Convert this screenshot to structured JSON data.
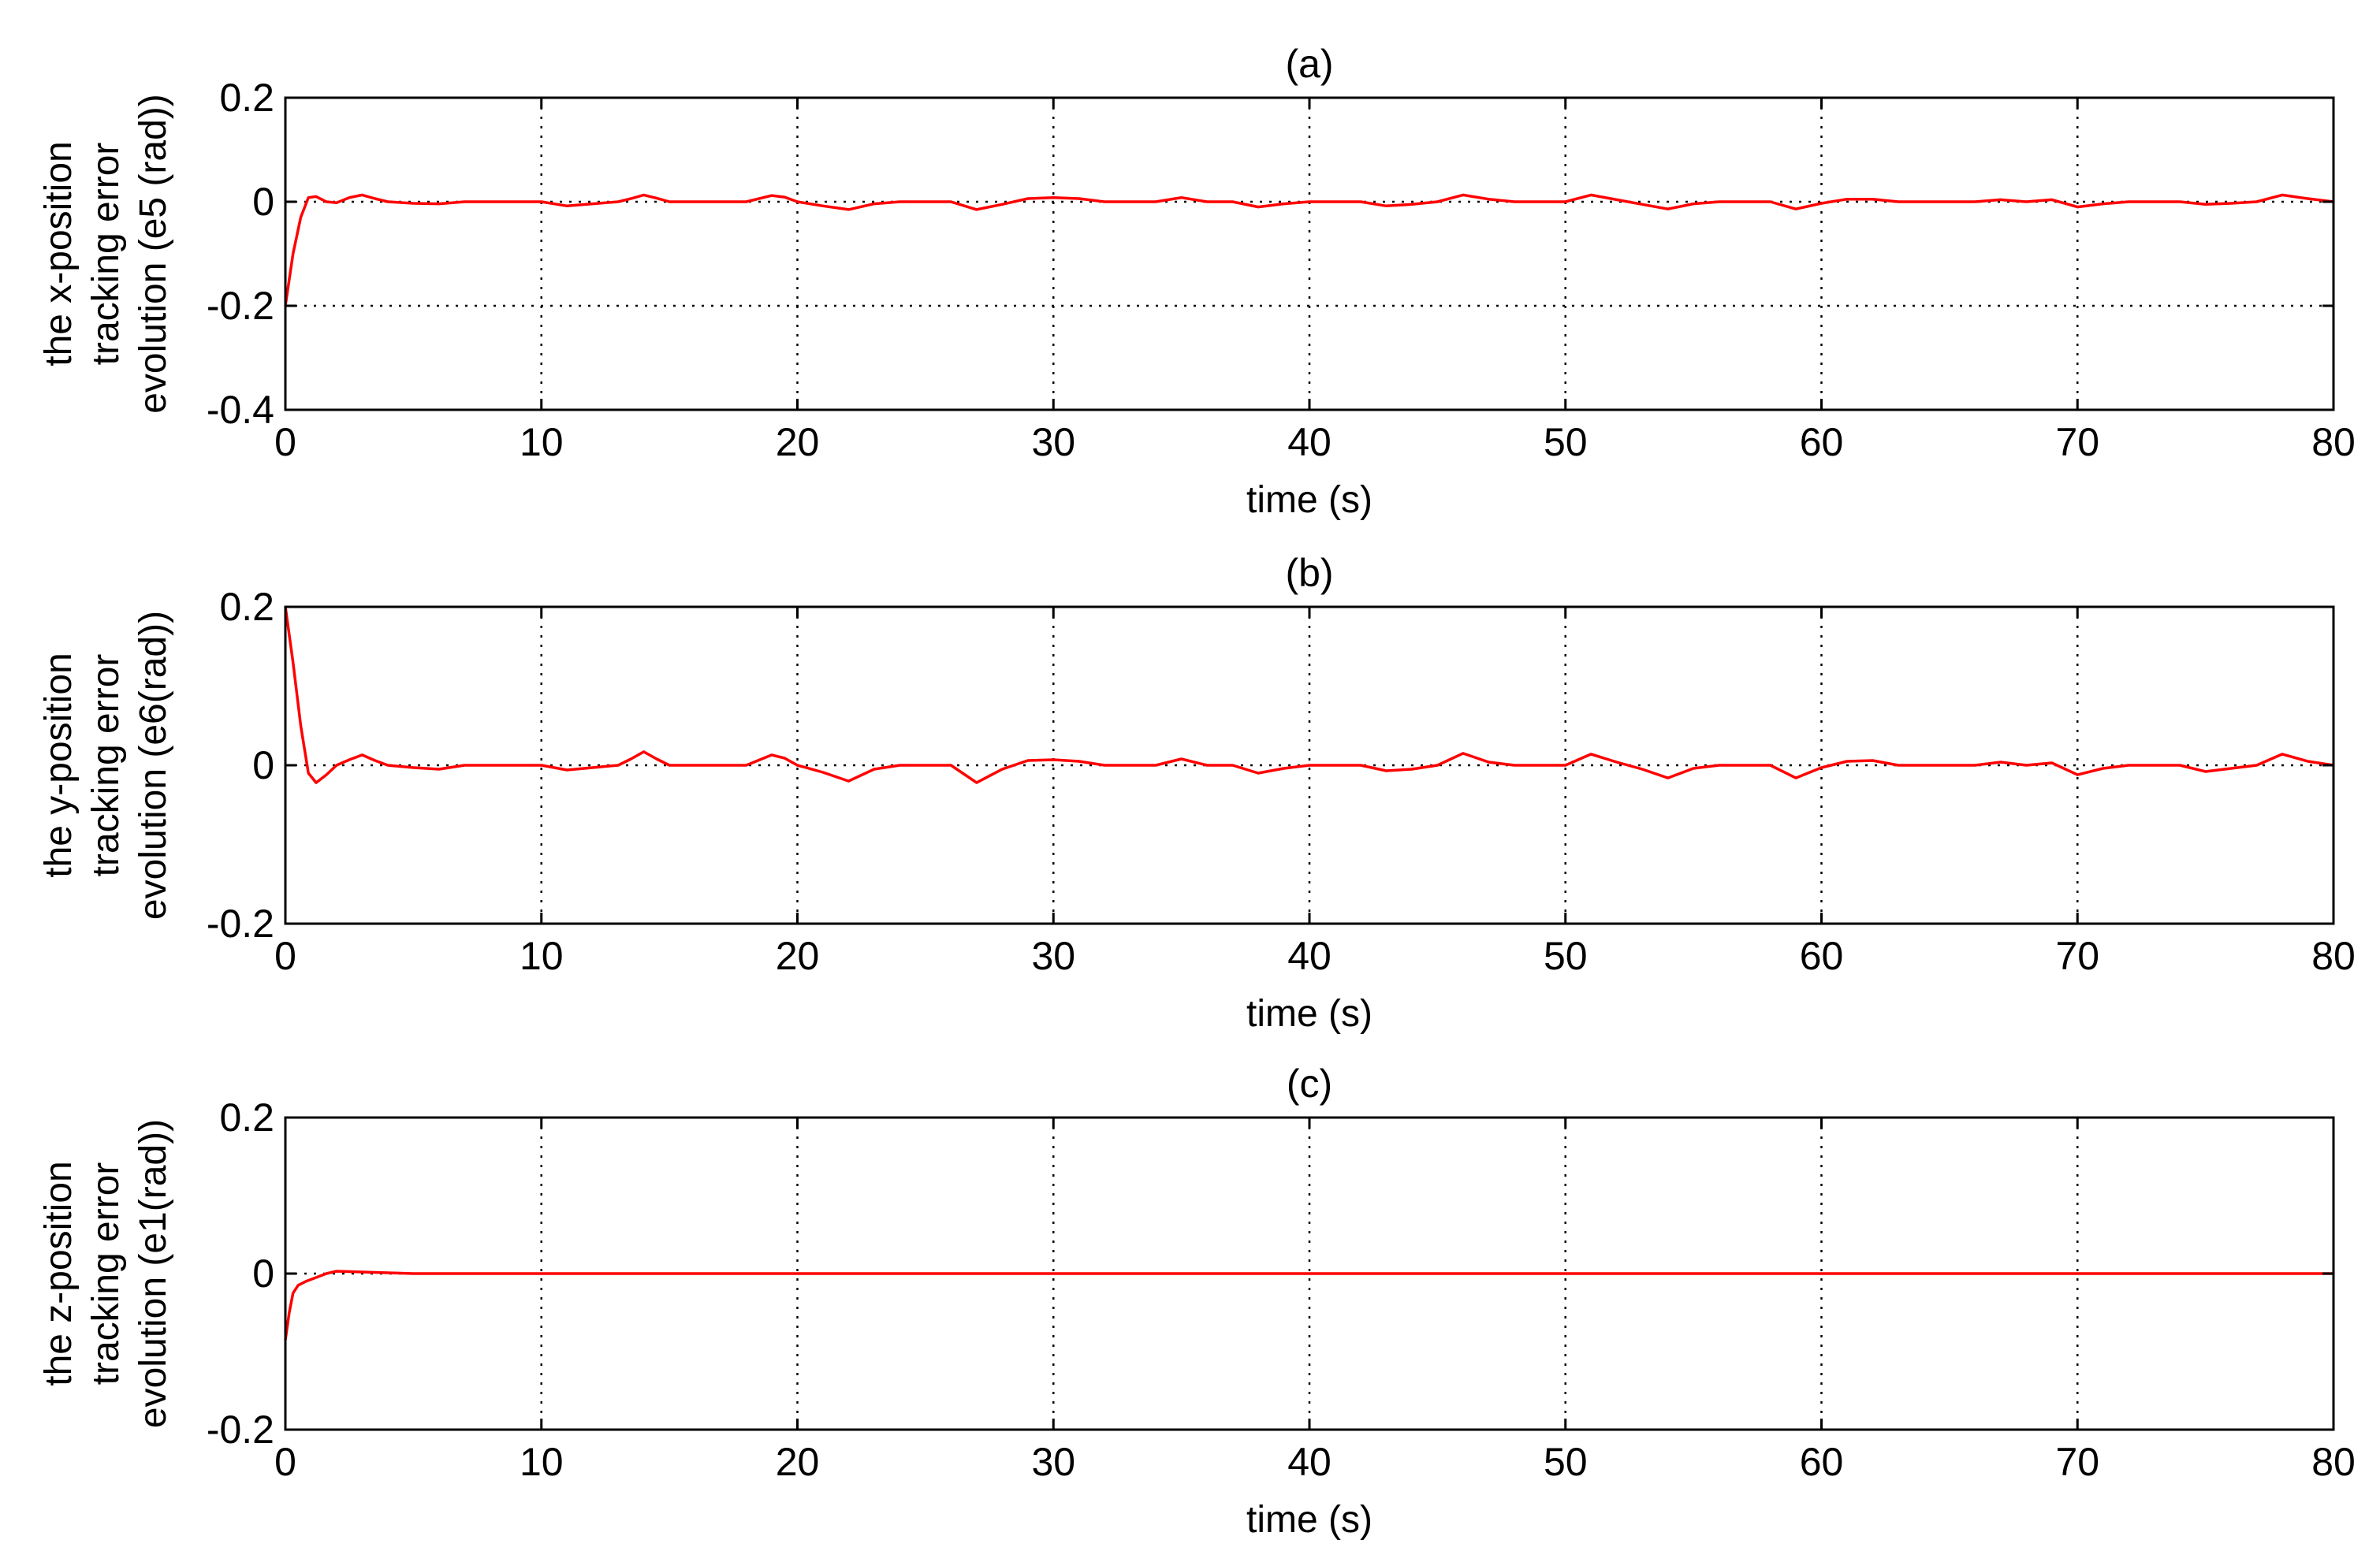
{
  "chart_data": [
    {
      "type": "line",
      "title": "(a)",
      "xlabel": "time (s)",
      "ylabel": [
        "the x-position",
        "tracking error",
        "evolution (e5 (rad))"
      ],
      "xlim": [
        0,
        80
      ],
      "ylim": [
        -0.4,
        0.2
      ],
      "xticks": [
        0,
        10,
        20,
        30,
        40,
        50,
        60,
        70,
        80
      ],
      "xtick_labels": [
        "0",
        "10",
        "20",
        "30",
        "40",
        "50",
        "60",
        "70",
        "80"
      ],
      "yticks": [
        -0.4,
        -0.2,
        0,
        0.2
      ],
      "ytick_labels": [
        "-0.4",
        "-0.2",
        "0",
        "0.2"
      ],
      "grid": "dotted",
      "series": [
        {
          "color": "#ff0000",
          "x": [
            0,
            0.3,
            0.6,
            0.9,
            1.2,
            1.6,
            2,
            2.5,
            3,
            3.5,
            4,
            5,
            6,
            7,
            8,
            9,
            10,
            11,
            12,
            13,
            13.5,
            14,
            14.5,
            15,
            16,
            17,
            18,
            19,
            19.5,
            20,
            21,
            22,
            23,
            24,
            25,
            26,
            27,
            28,
            29,
            30,
            31,
            32,
            33,
            34,
            35,
            36,
            37,
            38,
            39,
            40,
            41,
            42,
            43,
            44,
            45,
            46,
            47,
            48,
            49,
            50,
            51,
            52,
            53,
            54,
            55,
            56,
            57,
            58,
            59,
            60,
            61,
            62,
            63,
            64,
            65,
            66,
            67,
            68,
            69,
            70,
            71,
            72,
            73,
            74,
            75,
            76,
            77,
            78,
            79,
            80
          ],
          "y": [
            -0.2,
            -0.1,
            -0.03,
            0.008,
            0.01,
            0.0,
            -0.002,
            0.008,
            0.013,
            0.006,
            0.0,
            -0.003,
            -0.004,
            0.0,
            0.0,
            0.0,
            0.0,
            -0.008,
            -0.004,
            0.0,
            0.006,
            0.013,
            0.007,
            0.0,
            0.0,
            0.0,
            0.0,
            0.012,
            0.009,
            0.0,
            -0.008,
            -0.015,
            -0.004,
            0.0,
            0.0,
            0.0,
            -0.015,
            -0.005,
            0.006,
            0.008,
            0.006,
            0.0,
            0.0,
            0.0,
            0.008,
            0.0,
            0.0,
            -0.01,
            -0.004,
            0.0,
            0.0,
            0.0,
            -0.008,
            -0.005,
            0.0,
            0.013,
            0.005,
            0.0,
            0.0,
            0.0,
            0.013,
            0.004,
            -0.005,
            -0.014,
            -0.004,
            0.0,
            0.0,
            0.0,
            -0.014,
            -0.003,
            0.005,
            0.005,
            0.0,
            0.0,
            0.0,
            0.0,
            0.004,
            0.0,
            0.004,
            -0.01,
            -0.004,
            0.0,
            0.0,
            0.0,
            -0.005,
            -0.003,
            0.0,
            0.013,
            0.006,
            0.0
          ]
        }
      ]
    },
    {
      "type": "line",
      "title": "(b)",
      "xlabel": "time (s)",
      "ylabel": [
        "the y-position",
        "tracking error",
        "evolution (e6(rad))"
      ],
      "xlim": [
        0,
        80
      ],
      "ylim": [
        -0.2,
        0.2
      ],
      "xticks": [
        0,
        10,
        20,
        30,
        40,
        50,
        60,
        70,
        80
      ],
      "xtick_labels": [
        "0",
        "10",
        "20",
        "30",
        "40",
        "50",
        "60",
        "70",
        "80"
      ],
      "yticks": [
        -0.2,
        0,
        0.2
      ],
      "ytick_labels": [
        "-0.2",
        "0",
        "0.2"
      ],
      "grid": "dotted",
      "series": [
        {
          "color": "#ff0000",
          "x": [
            0,
            0.3,
            0.6,
            0.9,
            1.2,
            1.6,
            2,
            2.5,
            3,
            3.5,
            4,
            5,
            6,
            7,
            8,
            9,
            10,
            11,
            12,
            13,
            13.5,
            14,
            14.5,
            15,
            16,
            17,
            18,
            19,
            19.5,
            20,
            21,
            22,
            23,
            24,
            25,
            26,
            27,
            28,
            29,
            30,
            31,
            32,
            33,
            34,
            35,
            36,
            37,
            38,
            39,
            40,
            41,
            42,
            43,
            44,
            45,
            46,
            47,
            48,
            49,
            50,
            51,
            52,
            53,
            54,
            55,
            56,
            57,
            58,
            59,
            60,
            61,
            62,
            63,
            64,
            65,
            66,
            67,
            68,
            69,
            70,
            71,
            72,
            73,
            74,
            75,
            76,
            77,
            78,
            79,
            80
          ],
          "y": [
            0.2,
            0.13,
            0.05,
            -0.01,
            -0.022,
            -0.012,
            0.0,
            0.007,
            0.013,
            0.006,
            0.0,
            -0.003,
            -0.005,
            0.0,
            0.0,
            0.0,
            0.0,
            -0.006,
            -0.003,
            0.0,
            0.008,
            0.017,
            0.008,
            0.0,
            0.0,
            0.0,
            0.0,
            0.013,
            0.009,
            0.0,
            -0.009,
            -0.02,
            -0.005,
            0.0,
            0.0,
            0.0,
            -0.022,
            -0.005,
            0.006,
            0.007,
            0.005,
            0.0,
            0.0,
            0.0,
            0.008,
            0.0,
            0.0,
            -0.01,
            -0.004,
            0.0,
            0.0,
            0.0,
            -0.007,
            -0.005,
            0.0,
            0.015,
            0.004,
            0.0,
            0.0,
            0.0,
            0.014,
            0.004,
            -0.005,
            -0.016,
            -0.004,
            0.0,
            0.0,
            0.0,
            -0.016,
            -0.003,
            0.005,
            0.006,
            0.0,
            0.0,
            0.0,
            0.0,
            0.004,
            0.0,
            0.003,
            -0.012,
            -0.004,
            0.0,
            0.0,
            0.0,
            -0.008,
            -0.004,
            0.0,
            0.014,
            0.005,
            0.0
          ]
        }
      ]
    },
    {
      "type": "line",
      "title": "(c)",
      "xlabel": "time (s)",
      "ylabel": [
        "the z-position",
        "tracking error",
        "evolution (e1(rad))"
      ],
      "xlim": [
        0,
        80
      ],
      "ylim": [
        -0.2,
        0.2
      ],
      "xticks": [
        0,
        10,
        20,
        30,
        40,
        50,
        60,
        70,
        80
      ],
      "xtick_labels": [
        "0",
        "10",
        "20",
        "30",
        "40",
        "50",
        "60",
        "70",
        "80"
      ],
      "yticks": [
        -0.2,
        0,
        0.2
      ],
      "ytick_labels": [
        "-0.2",
        "0",
        "0.2"
      ],
      "grid": "dotted",
      "series": [
        {
          "color": "#ff0000",
          "x": [
            0,
            0.15,
            0.3,
            0.5,
            0.8,
            1.2,
            1.6,
            2,
            3,
            4,
            5,
            10,
            20,
            30,
            40,
            50,
            60,
            70,
            80
          ],
          "y": [
            -0.085,
            -0.05,
            -0.025,
            -0.015,
            -0.01,
            -0.005,
            0.0,
            0.003,
            0.002,
            0.001,
            0.0,
            0.0,
            0.0,
            0.0,
            0.0,
            0.0,
            0.0,
            0.0,
            0.0
          ]
        }
      ]
    }
  ]
}
